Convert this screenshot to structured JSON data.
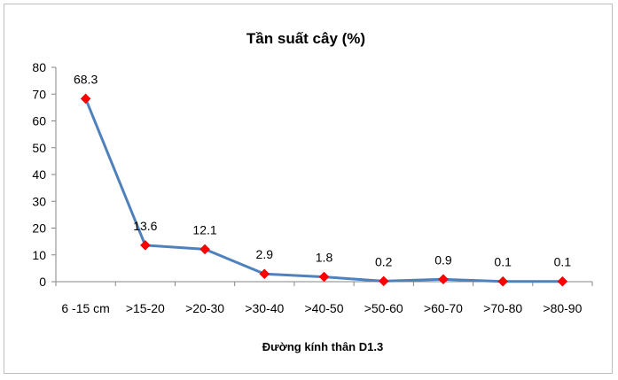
{
  "chart_data": {
    "type": "line",
    "title": "Tần suất cây (%)",
    "xlabel": "Đường kính thân D1.3",
    "ylabel": "",
    "categories": [
      "6 -15 cm",
      ">15-20",
      ">20-30",
      ">30-40",
      ">40-50",
      ">50-60",
      ">60-70",
      ">70-80",
      ">80-90"
    ],
    "values": [
      68.3,
      13.6,
      12.1,
      2.9,
      1.8,
      0.2,
      0.9,
      0.1,
      0.1
    ],
    "data_labels": [
      "68.3",
      "13.6",
      "12.1",
      "2.9",
      "1.8",
      "0.2",
      "0.9",
      "0.1",
      "0.1"
    ],
    "ylim": [
      0,
      80
    ],
    "yticks": [
      0,
      10,
      20,
      30,
      40,
      50,
      60,
      70,
      80
    ],
    "grid": false,
    "legend": "none",
    "colors": {
      "line": "#4f81bd",
      "marker": "#ff0000",
      "axis": "#868686"
    }
  }
}
